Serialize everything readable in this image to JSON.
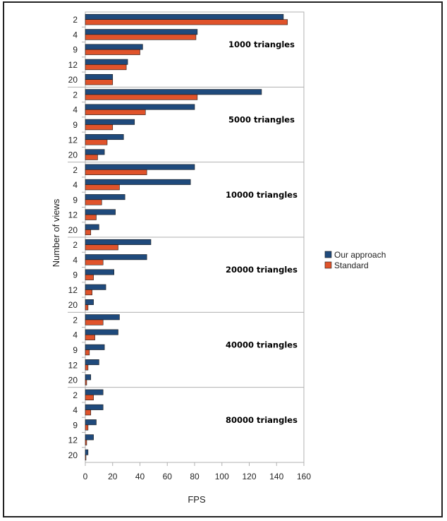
{
  "chart_data": {
    "type": "bar",
    "orientation": "horizontal",
    "xlabel": "FPS",
    "ylabel": "Number of views",
    "xlim": [
      0,
      160
    ],
    "xticks": [
      0,
      20,
      40,
      60,
      80,
      100,
      120,
      140,
      160
    ],
    "grid": false,
    "legend_position": "right",
    "categories": [
      "2",
      "4",
      "9",
      "12",
      "20"
    ],
    "colors": {
      "Our approach": "#1f4a7c",
      "Standard": "#e0532b"
    },
    "groups": [
      {
        "label": "1000 triangles",
        "series": [
          {
            "name": "Our approach",
            "values": [
              145,
              82,
              42,
              31,
              20
            ]
          },
          {
            "name": "Standard",
            "values": [
              148,
              81,
              40,
              30,
              20
            ]
          }
        ]
      },
      {
        "label": "5000 triangles",
        "series": [
          {
            "name": "Our approach",
            "values": [
              129,
              80,
              36,
              28,
              14
            ]
          },
          {
            "name": "Standard",
            "values": [
              82,
              44,
              20,
              16,
              9
            ]
          }
        ]
      },
      {
        "label": "10000 triangles",
        "series": [
          {
            "name": "Our approach",
            "values": [
              80,
              77,
              29,
              22,
              10
            ]
          },
          {
            "name": "Standard",
            "values": [
              45,
              25,
              12,
              8,
              4
            ]
          }
        ]
      },
      {
        "label": "20000 triangles",
        "series": [
          {
            "name": "Our approach",
            "values": [
              48,
              45,
              21,
              15,
              6
            ]
          },
          {
            "name": "Standard",
            "values": [
              24,
              13,
              6,
              5,
              2
            ]
          }
        ]
      },
      {
        "label": "40000 triangles",
        "series": [
          {
            "name": "Our approach",
            "values": [
              25,
              24,
              14,
              10,
              4
            ]
          },
          {
            "name": "Standard",
            "values": [
              13,
              7,
              3,
              2,
              1
            ]
          }
        ]
      },
      {
        "label": "80000 triangles",
        "series": [
          {
            "name": "Our approach",
            "values": [
              13,
              13,
              8,
              6,
              2
            ]
          },
          {
            "name": "Standard",
            "values": [
              6,
              4,
              2,
              1,
              0.5
            ]
          }
        ]
      }
    ],
    "legend": [
      "Our approach",
      "Standard"
    ]
  }
}
